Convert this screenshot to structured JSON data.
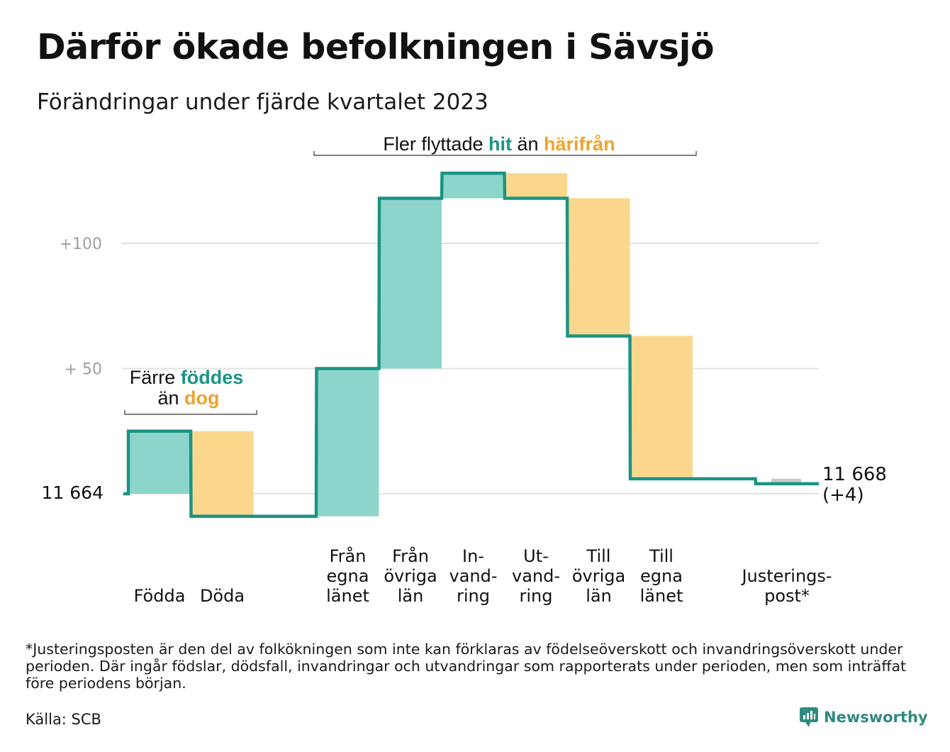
{
  "title": "Därför ökade befolkningen i Sävsjö",
  "subtitle": "Förändringar under fjärde kvartalet 2023",
  "colors": {
    "line": "#1a9484",
    "increase": "#8dd5cb",
    "decrease": "#fad78d",
    "adjustment": "#c8c8c8",
    "grid": "#e2e2e2",
    "tick_label": "#a0a0a0",
    "teal_text": "#1a9484",
    "orange_text": "#f0a32c"
  },
  "chart_data": {
    "type": "waterfall",
    "start_value": 11664,
    "start_label": "11  664",
    "end_value": 11668,
    "end_label_line1": "11 668",
    "end_label_line2": "(+4)",
    "y_ticks": [
      {
        "value": 100,
        "label": "+100"
      },
      {
        "value": 50,
        "label": "+  50"
      }
    ],
    "ylim": [
      -12,
      134
    ],
    "steps": [
      {
        "label_lines": [
          "Födda"
        ],
        "change": 25,
        "kind": "increase"
      },
      {
        "label_lines": [
          "Döda"
        ],
        "change": -34,
        "kind": "decrease"
      },
      {
        "label_lines": [],
        "change": 0,
        "kind": "none"
      },
      {
        "label_lines": [
          "Från",
          "egna",
          "länet"
        ],
        "change": 59,
        "kind": "increase"
      },
      {
        "label_lines": [
          "Från",
          "övriga",
          "län"
        ],
        "change": 68,
        "kind": "increase"
      },
      {
        "label_lines": [
          "In-",
          "vand-",
          "ring"
        ],
        "change": 10,
        "kind": "increase"
      },
      {
        "label_lines": [
          "Ut-",
          "vand-",
          "ring"
        ],
        "change": -10,
        "kind": "decrease"
      },
      {
        "label_lines": [
          "Till",
          "övriga",
          "län"
        ],
        "change": -55,
        "kind": "decrease"
      },
      {
        "label_lines": [
          "Till",
          "egna",
          "länet"
        ],
        "change": -57,
        "kind": "decrease"
      },
      {
        "label_lines": [],
        "change": 0,
        "kind": "none"
      },
      {
        "label_lines": [
          "Justerings-",
          "post*"
        ],
        "change": -2,
        "kind": "adjustment"
      }
    ],
    "annotations": [
      {
        "id": "births",
        "line1": [
          {
            "text": "Färre ",
            "color": "default"
          },
          {
            "text": "föddes",
            "color": "teal"
          }
        ],
        "line2": [
          {
            "text": "än ",
            "color": "default"
          },
          {
            "text": "dog",
            "color": "orange"
          }
        ]
      },
      {
        "id": "migration",
        "line1": [
          {
            "text": "Fler flyttade  ",
            "color": "default"
          },
          {
            "text": "hit",
            "color": "teal"
          },
          {
            "text": "  än ",
            "color": "default"
          },
          {
            "text": "härifrån",
            "color": "orange"
          }
        ]
      }
    ]
  },
  "footnote": "*Justeringsposten är den del av folkökningen som inte kan förklaras av födelseöverskott och invandringsöverskott under perioden. Där ingår födslar, dödsfall, invandringar och utvandringar som rapporterats under perioden, men som inträffat före periodens början.",
  "source": "Källa: SCB",
  "brand": "Newsworthy"
}
